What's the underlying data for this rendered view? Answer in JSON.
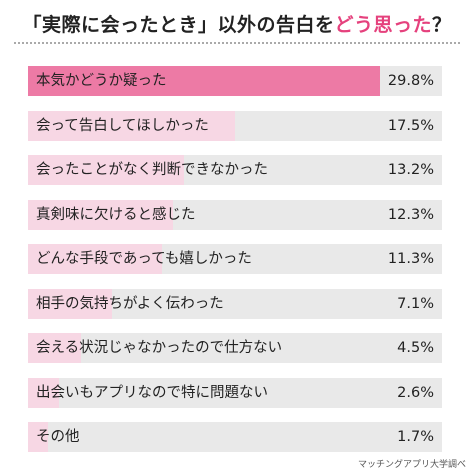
{
  "title": {
    "part1": "「実際に会ったとき」以外の告白を",
    "highlight": "どう思った",
    "part2": "？"
  },
  "source": "マッチングアプリ大学調べ",
  "colors": {
    "accent": "#e5417d",
    "top_bar": "#ed7aa5",
    "bar": "#f7d7e4",
    "track": "#e9e9e9"
  },
  "chart_data": {
    "type": "bar",
    "orientation": "horizontal",
    "unit": "%",
    "xlim": [
      0,
      35
    ],
    "grid": false,
    "categories": [
      "本気かどうか疑った",
      "会って告白してほしかった",
      "会ったことがなく判断できなかった",
      "真剣味に欠けると感じた",
      "どんな手段であっても嬉しかった",
      "相手の気持ちがよく伝わった",
      "会える状況じゃなかったので仕方ない",
      "出会いもアプリなので特に問題ない",
      "その他"
    ],
    "values": [
      29.8,
      17.5,
      13.2,
      12.3,
      11.3,
      7.1,
      4.5,
      2.6,
      1.7
    ],
    "value_labels": [
      "29.8%",
      "17.5%",
      "13.2%",
      "12.3%",
      "11.3%",
      "7.1%",
      "4.5%",
      "2.6%",
      "1.7%"
    ]
  }
}
